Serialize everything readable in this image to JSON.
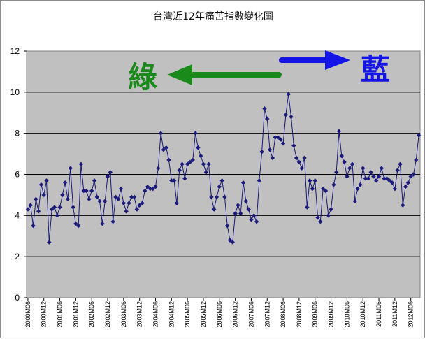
{
  "chart_data": {
    "type": "line",
    "title": "台灣近12年痛苦指數變化圖",
    "xlabel": "",
    "ylabel": "",
    "ylim": [
      0,
      12
    ],
    "y_ticks": [
      "0",
      "2",
      "4",
      "6",
      "8",
      "10",
      "12"
    ],
    "x_tick_labels": [
      "2000M06",
      "2000M12",
      "2001M06",
      "2001M12",
      "2002M06",
      "2002M12",
      "2003M06",
      "2003M12",
      "2004M06",
      "2004M12",
      "2005M06",
      "2005M12",
      "2006M06",
      "2006M12",
      "2007M06",
      "2007M12",
      "2008M06",
      "2008M12",
      "2009M06",
      "2009M12",
      "2010M06",
      "2010M12",
      "2011M06",
      "2011M12",
      "2012M06"
    ],
    "grid": true,
    "series": [
      {
        "name": "",
        "color": "#1a1a7a",
        "values": [
          4.3,
          4.5,
          3.5,
          4.8,
          4.2,
          5.5,
          5.0,
          5.7,
          2.7,
          4.3,
          4.4,
          4.0,
          4.4,
          5.0,
          5.6,
          4.8,
          6.3,
          4.4,
          3.6,
          3.5,
          6.5,
          5.2,
          5.2,
          4.8,
          5.2,
          5.7,
          4.9,
          4.7,
          3.6,
          4.7,
          5.9,
          6.1,
          3.7,
          4.9,
          4.8,
          5.3,
          4.6,
          4.2,
          4.6,
          4.9,
          4.9,
          4.3,
          4.5,
          4.6,
          5.2,
          5.4,
          5.3,
          5.3,
          5.4,
          6.3,
          8.0,
          7.2,
          7.3,
          6.7,
          5.7,
          5.7,
          4.6,
          6.2,
          6.5,
          5.8,
          6.5,
          6.6,
          6.7,
          8.0,
          7.3,
          6.9,
          6.5,
          6.1,
          6.5,
          4.9,
          4.3,
          4.9,
          5.4,
          5.7,
          4.9,
          3.5,
          2.8,
          2.7,
          4.1,
          4.5,
          4.1,
          5.6,
          4.7,
          4.3,
          3.8,
          4.0,
          3.7,
          5.7,
          7.1,
          9.2,
          8.7,
          7.2,
          6.8,
          7.8,
          7.8,
          7.7,
          7.5,
          8.9,
          9.9,
          8.8,
          7.4,
          6.8,
          6.6,
          6.3,
          6.8,
          4.4,
          5.7,
          5.3,
          5.7,
          3.9,
          3.7,
          5.3,
          5.2,
          4.0,
          4.3,
          5.5,
          6.1,
          8.1,
          6.9,
          6.6,
          5.9,
          6.3,
          6.5,
          4.7,
          5.3,
          5.5,
          6.3,
          5.8,
          5.8,
          6.1,
          5.9,
          5.7,
          5.9,
          6.3,
          5.8,
          5.8,
          5.7,
          5.6,
          5.3,
          6.2,
          6.5,
          4.5,
          5.4,
          5.6,
          5.9,
          6.0,
          6.7,
          7.9
        ]
      }
    ],
    "annotations": [
      {
        "text": "綠",
        "color": "#1a8a1a",
        "arrow_direction": "left"
      },
      {
        "text": "藍",
        "color": "#1414e6",
        "arrow_direction": "right"
      }
    ],
    "plot_background": "#c0c0c0",
    "marker": "diamond"
  }
}
